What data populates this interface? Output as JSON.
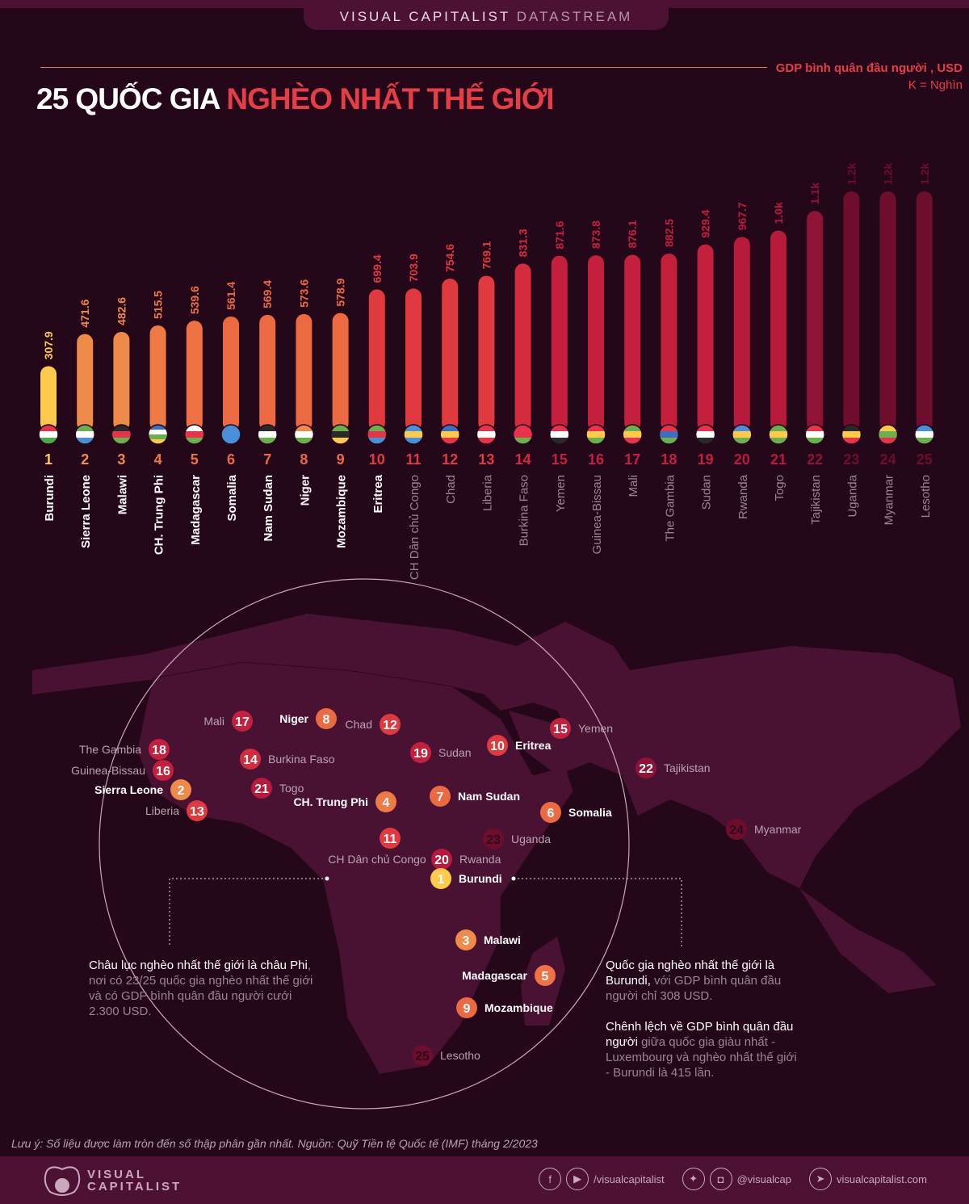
{
  "brand": {
    "name": "VISUAL CAPITALIST",
    "sub": "DATASTREAM"
  },
  "title": {
    "part1": "25 QUỐC GIA ",
    "part2": "NGHÈO NHẤT THẾ GIỚI"
  },
  "unit": {
    "line1": "GDP bình quân đầu người , USD",
    "line2": "K = Nghìn"
  },
  "chart_data": {
    "type": "bar",
    "title": "25 QUỐC GIA NGHÈO NHẤT THẾ GIỚI",
    "ylabel": "GDP bình quân đầu người , USD",
    "ylim": [
      0,
      1200
    ],
    "grid": false,
    "categories": [
      "Burundi",
      "Sierra Leone",
      "Malawi",
      "CH. Trung Phi",
      "Madagascar",
      "Somalia",
      "Nam Sudan",
      "Niger",
      "Mozambique",
      "Eritrea",
      "CH Dân chủ Congo",
      "Chad",
      "Liberia",
      "Burkina Faso",
      "Yemen",
      "Guinea-Bissau",
      "Mali",
      "The Gambia",
      "Sudan",
      "Rwanda",
      "Togo",
      "Tajikistan",
      "Uganda",
      "Myanmar",
      "Lesotho"
    ],
    "ranks": [
      1,
      2,
      3,
      4,
      5,
      6,
      7,
      8,
      9,
      10,
      11,
      12,
      13,
      14,
      15,
      16,
      17,
      18,
      19,
      20,
      21,
      22,
      23,
      24,
      25
    ],
    "values": [
      307.9,
      471.6,
      482.6,
      515.5,
      539.6,
      561.4,
      569.4,
      573.6,
      578.9,
      699.4,
      703.9,
      754.6,
      769.1,
      831.3,
      871.6,
      873.8,
      876.1,
      882.5,
      929.4,
      967.7,
      1000,
      1100,
      1200,
      1200,
      1200
    ],
    "value_labels": [
      "307.9",
      "471.6",
      "482.6",
      "515.5",
      "539.6",
      "561.4",
      "569.4",
      "573.6",
      "578.9",
      "699.4",
      "703.9",
      "754.6",
      "769.1",
      "831.3",
      "871.6",
      "873.8",
      "876.1",
      "882.5",
      "929.4",
      "967.7",
      "1.0k",
      "1.1k",
      "1.2k",
      "1.2k",
      "1.2k"
    ],
    "colors": [
      "#fdca4c",
      "#f08a48",
      "#f08a48",
      "#ee7a45",
      "#ee7244",
      "#ec6a42",
      "#ec6a42",
      "#ec6a42",
      "#ec6a42",
      "#e03a3e",
      "#e03a3e",
      "#e03a3e",
      "#e03a3e",
      "#d42b3e",
      "#c51f3e",
      "#c51f3e",
      "#c51f3e",
      "#c51f3e",
      "#c51f3e",
      "#b81a3c",
      "#b81a3c",
      "#8e1336",
      "#6e0d2c",
      "#6e0d2c",
      "#6e0d2c"
    ],
    "bold_labels": [
      true,
      true,
      true,
      true,
      true,
      true,
      true,
      true,
      true,
      true,
      false,
      false,
      false,
      false,
      false,
      false,
      false,
      false,
      false,
      false,
      false,
      false,
      false,
      false,
      false
    ]
  },
  "flags": [
    [
      "#e8344a",
      "#ffffff",
      "#4fa847"
    ],
    [
      "#6ab04c",
      "#ffffff",
      "#4a90d9"
    ],
    [
      "#2a2a2a",
      "#e8344a",
      "#6ab04c"
    ],
    [
      "#3c6fc4",
      "#ffffff",
      "#6ab04c",
      "#fdca4c"
    ],
    [
      "#ffffff",
      "#e8344a",
      "#6ab04c"
    ],
    [
      "#4a90d9",
      "#4a90d9",
      "#4a90d9"
    ],
    [
      "#2a2a2a",
      "#ffffff",
      "#6ab04c"
    ],
    [
      "#f08a48",
      "#ffffff",
      "#6ab04c"
    ],
    [
      "#6ab04c",
      "#2a2a2a",
      "#fdca4c"
    ],
    [
      "#6ab04c",
      "#e8344a",
      "#4a90d9"
    ],
    [
      "#4a90d9",
      "#fdca4c",
      "#4a90d9"
    ],
    [
      "#3c6fc4",
      "#fdca4c",
      "#e8344a"
    ],
    [
      "#e8344a",
      "#ffffff",
      "#e8344a"
    ],
    [
      "#e8344a",
      "#e8344a",
      "#6ab04c"
    ],
    [
      "#e8344a",
      "#ffffff",
      "#2a2a2a"
    ],
    [
      "#e8344a",
      "#fdca4c",
      "#6ab04c"
    ],
    [
      "#6ab04c",
      "#fdca4c",
      "#e8344a"
    ],
    [
      "#e8344a",
      "#3c6fc4",
      "#6ab04c"
    ],
    [
      "#e8344a",
      "#ffffff",
      "#2a2a2a"
    ],
    [
      "#4a90d9",
      "#fdca4c",
      "#6ab04c"
    ],
    [
      "#6ab04c",
      "#fdca4c",
      "#6ab04c"
    ],
    [
      "#e8344a",
      "#ffffff",
      "#6ab04c"
    ],
    [
      "#2a2a2a",
      "#fdca4c",
      "#e8344a"
    ],
    [
      "#fdca4c",
      "#6ab04c",
      "#e8344a"
    ],
    [
      "#4a90d9",
      "#ffffff",
      "#6ab04c"
    ]
  ],
  "map": {
    "markers": [
      {
        "rank": 17,
        "label": "Mali",
        "bold": false
      },
      {
        "rank": 8,
        "label": "Niger",
        "bold": true
      },
      {
        "rank": 12,
        "label": "Chad",
        "bold": false
      },
      {
        "rank": 15,
        "label": "Yemen",
        "bold": false
      },
      {
        "rank": 10,
        "label": "Eritrea",
        "bold": true
      },
      {
        "rank": 19,
        "label": "Sudan",
        "bold": false
      },
      {
        "rank": 18,
        "label": "The Gambia",
        "bold": false
      },
      {
        "rank": 16,
        "label": "Guinea-Bissau",
        "bold": false
      },
      {
        "rank": 14,
        "label": "Burkina Faso",
        "bold": false
      },
      {
        "rank": 22,
        "label": "Tajikistan",
        "bold": false
      },
      {
        "rank": 2,
        "label": "Sierra Leone",
        "bold": true
      },
      {
        "rank": 21,
        "label": "Togo",
        "bold": false
      },
      {
        "rank": 4,
        "label": "CH. Trung Phi",
        "bold": true
      },
      {
        "rank": 7,
        "label": "Nam Sudan",
        "bold": true
      },
      {
        "rank": 6,
        "label": "Somalia",
        "bold": true
      },
      {
        "rank": 13,
        "label": "Liberia",
        "bold": false
      },
      {
        "rank": 24,
        "label": "Myanmar",
        "bold": false
      },
      {
        "rank": 23,
        "label": "Uganda",
        "bold": false
      },
      {
        "rank": 11,
        "label": "CH Dân chủ Congo",
        "bold": false
      },
      {
        "rank": 20,
        "label": "Rwanda",
        "bold": false
      },
      {
        "rank": 1,
        "label": "Burundi",
        "bold": true
      },
      {
        "rank": 3,
        "label": "Malawi",
        "bold": true
      },
      {
        "rank": 5,
        "label": "Madagascar",
        "bold": true
      },
      {
        "rank": 9,
        "label": "Mozambique",
        "bold": true
      },
      {
        "rank": 25,
        "label": "Lesotho",
        "bold": false
      }
    ]
  },
  "callouts": {
    "left": {
      "strong": "Châu lục nghèo nhất thế giới là châu Phi",
      "rest": ", nơi có 23/25 quốc gia nghèo nhất thế giới và có GDP bình quân đầu người cưới 2.300 USD."
    },
    "right1": {
      "strong": "Quốc gia nghèo nhất thế giới là Burundi,",
      "rest": " với GDP bình quân đầu người chỉ 308 USD."
    },
    "right2": {
      "strong": "Chênh lệch về GDP bình quân đầu người",
      "rest": " giữa quốc gia giàu nhất - Luxembourg và nghèo nhất thế giới - Burundi là 415 lần."
    }
  },
  "note": "Lưu ý: Số liệu được làm tròn đến số thập phân gần nhất. Nguồn: Quỹ Tiền tệ Quốc tế (IMF) tháng 2/2023",
  "footer": {
    "logo_line1": "VISUAL",
    "logo_line2": "CAPITALIST",
    "facebook_youtube": "/visualcapitalist",
    "twitter_instagram": "@visualcap",
    "website": "visualcapitalist.com"
  }
}
